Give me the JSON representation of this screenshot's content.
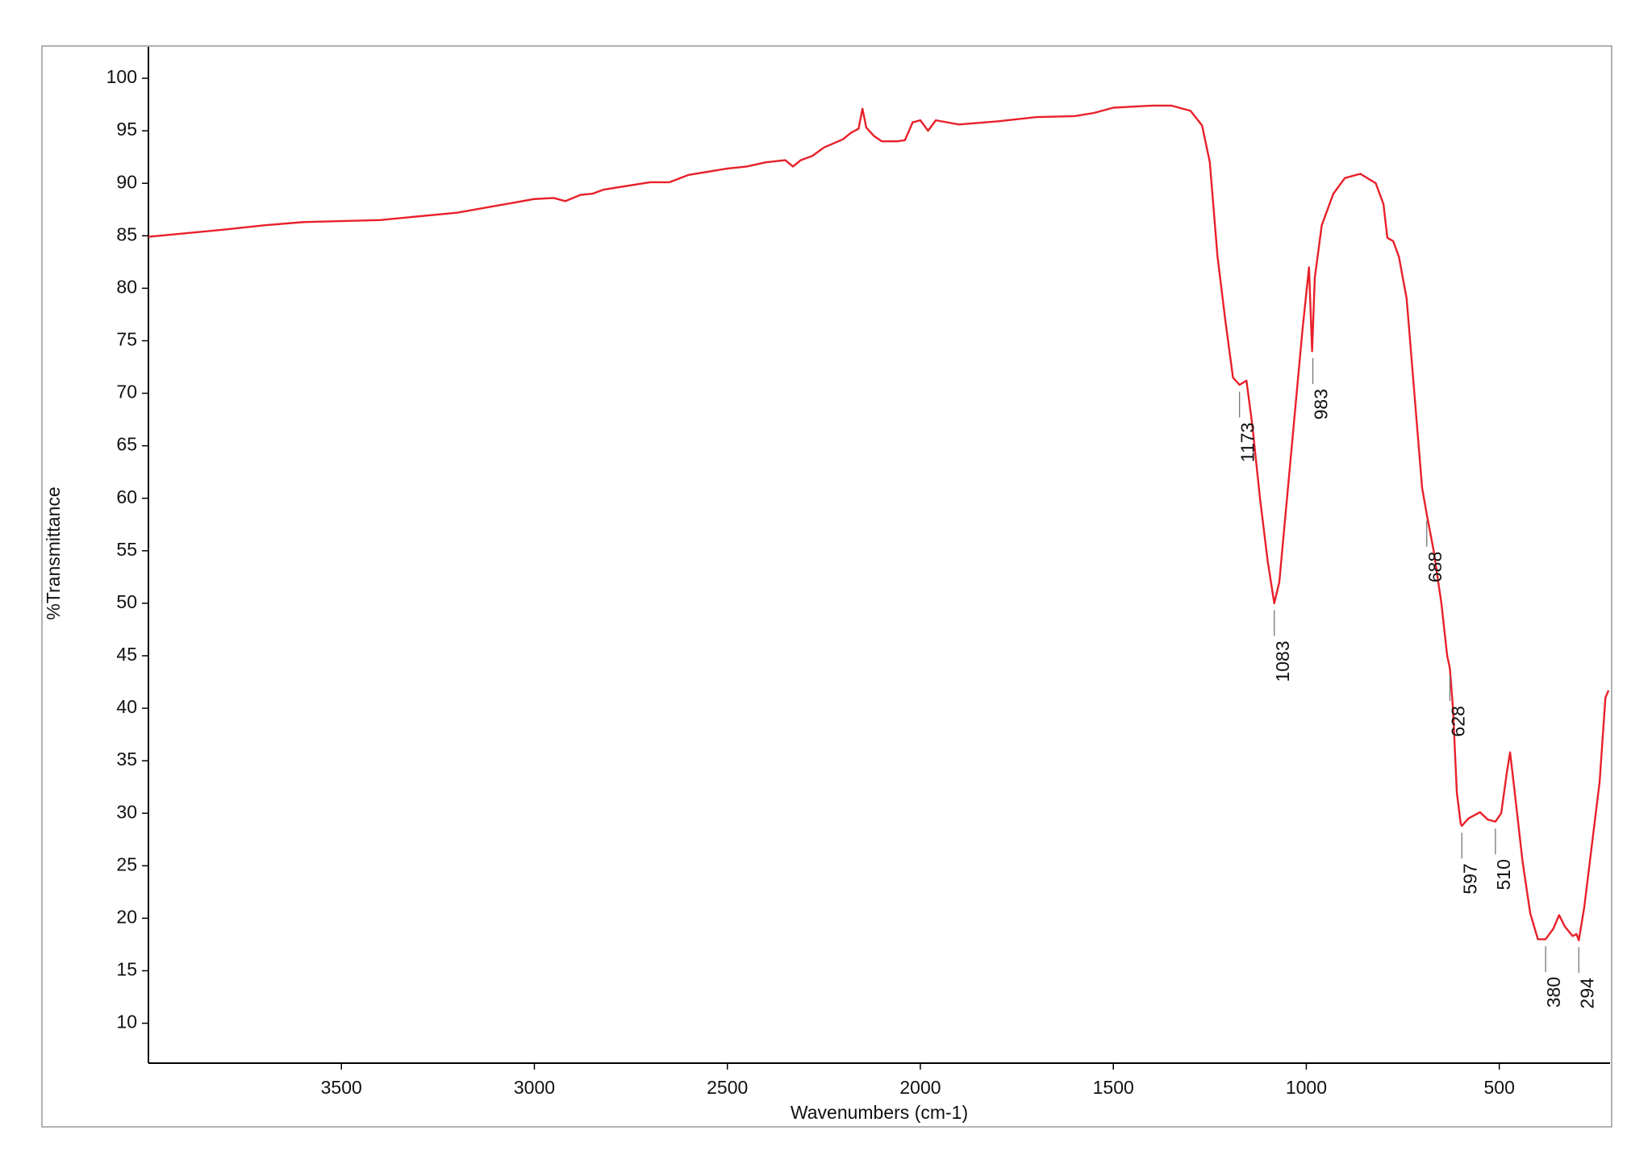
{
  "chart_data": {
    "type": "line",
    "x_label": "Wavenumbers (cm-1)",
    "y_label": "%Transmittance",
    "color": "#e8202a",
    "xlim": [
      4000,
      213
    ],
    "ylim": [
      6.2,
      103
    ],
    "xticks": [
      3500,
      3000,
      2500,
      2000,
      1500,
      1000,
      500
    ],
    "yticks": [
      10,
      15,
      20,
      25,
      30,
      35,
      40,
      45,
      50,
      55,
      60,
      65,
      70,
      75,
      80,
      85,
      90,
      95,
      100
    ],
    "x": [
      4000,
      3800,
      3700,
      3600,
      3400,
      3200,
      3000,
      2950,
      2920,
      2880,
      2850,
      2820,
      2700,
      2650,
      2600,
      2500,
      2450,
      2400,
      2350,
      2330,
      2310,
      2280,
      2250,
      2200,
      2180,
      2160,
      2150,
      2140,
      2120,
      2100,
      2060,
      2040,
      2020,
      2000,
      1980,
      1960,
      1900,
      1800,
      1700,
      1600,
      1550,
      1500,
      1400,
      1350,
      1300,
      1270,
      1250,
      1230,
      1210,
      1190,
      1173,
      1155,
      1140,
      1120,
      1100,
      1083,
      1070,
      1050,
      1030,
      1010,
      993,
      985,
      978,
      960,
      930,
      900,
      860,
      820,
      800,
      790,
      775,
      760,
      740,
      720,
      700,
      688,
      670,
      650,
      635,
      628,
      620,
      610,
      600,
      597,
      580,
      550,
      530,
      510,
      495,
      480,
      472,
      460,
      440,
      420,
      400,
      380,
      360,
      345,
      330,
      310,
      300,
      294,
      280,
      260,
      240,
      225,
      217
    ],
    "values": [
      84.9,
      85.6,
      86.0,
      86.3,
      86.5,
      87.2,
      88.5,
      88.6,
      88.3,
      88.9,
      89.0,
      89.4,
      90.1,
      90.1,
      90.8,
      91.4,
      91.6,
      92.0,
      92.2,
      91.6,
      92.2,
      92.6,
      93.4,
      94.2,
      94.8,
      95.2,
      97.1,
      95.3,
      94.5,
      94.0,
      94.0,
      94.1,
      95.8,
      96.0,
      95.0,
      96.0,
      95.6,
      95.9,
      96.3,
      96.4,
      96.7,
      97.2,
      97.4,
      97.4,
      96.9,
      95.5,
      92.0,
      83.0,
      77.0,
      71.5,
      70.8,
      71.2,
      67.0,
      60.0,
      54.0,
      50.0,
      52.0,
      60.0,
      68.0,
      76.0,
      82.0,
      74.0,
      81.0,
      86.0,
      89.0,
      90.5,
      90.9,
      90.0,
      88.0,
      84.8,
      84.5,
      83.0,
      79.0,
      70.0,
      61.0,
      58.5,
      55.0,
      50.0,
      45.0,
      43.8,
      40.0,
      32.0,
      29.0,
      28.8,
      29.5,
      30.1,
      29.4,
      29.2,
      30.0,
      34.0,
      35.8,
      32.0,
      25.5,
      20.5,
      18.0,
      18.0,
      19.0,
      20.3,
      19.2,
      18.3,
      18.5,
      17.9,
      21.0,
      27.0,
      33.0,
      41.0,
      41.7
    ],
    "peaks": [
      {
        "x": 1173,
        "y": 70.3
      },
      {
        "x": 1083,
        "y": 49.5
      },
      {
        "x": 983,
        "y": 73.5
      },
      {
        "x": 688,
        "y": 58.0
      },
      {
        "x": 628,
        "y": 43.3
      },
      {
        "x": 597,
        "y": 28.3
      },
      {
        "x": 510,
        "y": 28.7
      },
      {
        "x": 380,
        "y": 17.5
      },
      {
        "x": 294,
        "y": 17.4
      }
    ]
  }
}
